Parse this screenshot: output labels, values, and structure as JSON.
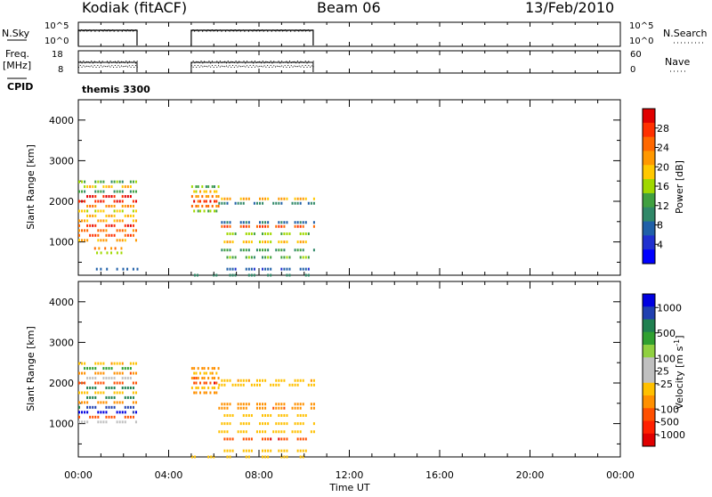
{
  "header": {
    "station": "Kodiak (fitACF)",
    "beam": "Beam 06",
    "date": "13/Feb/2010"
  },
  "top_panels": {
    "nsky_label": "N.Sky",
    "nsky_ticks": [
      "10^5",
      "10^0"
    ],
    "nsearch_label": "N.Search",
    "nsearch_ticks": [
      "10^5",
      "10^0"
    ],
    "freq_label": "Freq.",
    "freq_unit": "[MHz]",
    "freq_ticks": [
      "18",
      "8"
    ],
    "nave_label": "Nave",
    "nave_ticks": [
      "60",
      "0"
    ],
    "cpid_label": "CPID",
    "cpid_value": "themis 3300"
  },
  "axes": {
    "ylabel": "Slant Range [km]",
    "xlabel": "Time UT",
    "x_ticks": [
      "00:00",
      "04:00",
      "08:00",
      "12:00",
      "16:00",
      "20:00",
      "00:00"
    ],
    "y_ticks": [
      "4000",
      "3000",
      "2000",
      "1000"
    ]
  },
  "power_scale": {
    "label": "Power [dB]",
    "ticks": [
      "28",
      "24",
      "20",
      "16",
      "12",
      "8",
      "4"
    ],
    "colors": [
      "#e00000",
      "#ff3000",
      "#ff6800",
      "#ff9800",
      "#ffc800",
      "#a0d800",
      "#40a040",
      "#308868",
      "#2060a8",
      "#2030d0",
      "#0000ff"
    ]
  },
  "velocity_scale": {
    "label": "Velocity [m s",
    "label_sup": "-1",
    "label_end": "]",
    "ticks": [
      "1000",
      "500",
      "100",
      "25",
      "-25",
      "-100",
      "-500",
      "-1000"
    ],
    "colors": [
      "#0000e0",
      "#2040b0",
      "#208050",
      "#30a030",
      "#90d040",
      "#c0c0c0",
      "#c0c0c0",
      "#ffc000",
      "#ff9000",
      "#ff5000",
      "#ff2000",
      "#e00000"
    ]
  },
  "chart_data": [
    {
      "type": "line",
      "title": "N.Sky / N.Search",
      "x_range_hours": [
        0,
        24
      ],
      "operating_intervals_hours": [
        [
          0,
          2.6
        ],
        [
          5.0,
          10.4
        ]
      ],
      "nsky_level": "10^5",
      "nsearch_line": "dotted"
    },
    {
      "type": "scatter",
      "title": "Freq. / Nave",
      "operating_intervals_hours": [
        [
          0,
          2.6
        ],
        [
          5.0,
          10.4
        ]
      ],
      "freq_range_mhz": [
        8,
        18
      ],
      "nave_range": [
        0,
        60
      ]
    },
    {
      "type": "scatter",
      "title": "Power [dB]",
      "xlabel": "Time UT",
      "ylabel": "Slant Range [km]",
      "xlim_hours": [
        0,
        24
      ],
      "ylim_km": [
        180,
        4500
      ],
      "colorbar": [
        0,
        32
      ],
      "samples": [
        {
          "t0": 0.0,
          "t1": 2.6,
          "ranges": [
            2480,
            2360,
            2240,
            2120,
            2000,
            1880,
            1760,
            1640,
            1520,
            1400,
            1280,
            1160,
            1040
          ],
          "values": [
            12,
            18,
            10,
            30,
            28,
            22,
            16,
            18,
            20,
            28,
            24,
            26,
            20
          ]
        },
        {
          "t0": 0.7,
          "t1": 2.0,
          "ranges": [
            840,
            730
          ],
          "values": [
            22,
            14
          ]
        },
        {
          "t0": 5.0,
          "t1": 6.2,
          "ranges": [
            2360,
            2240,
            2120,
            2000,
            1880,
            1760
          ],
          "values": [
            12,
            18,
            22,
            28,
            24,
            14
          ]
        },
        {
          "t0": 6.2,
          "t1": 10.4,
          "ranges": [
            2060,
            1950,
            1480,
            1380,
            1200,
            1000,
            800,
            620,
            330
          ],
          "values": [
            20,
            8,
            6,
            26,
            14,
            18,
            10,
            12,
            4
          ]
        },
        {
          "t0": 0.6,
          "t1": 2.6,
          "ranges": [
            330
          ],
          "values": [
            4
          ]
        },
        {
          "t0": 5.0,
          "t1": 10.4,
          "ranges": [
            180
          ],
          "values": [
            8
          ]
        }
      ]
    },
    {
      "type": "scatter",
      "title": "Velocity [m s-1]",
      "xlabel": "Time UT",
      "ylabel": "Slant Range [km]",
      "xlim_hours": [
        0,
        24
      ],
      "ylim_km": [
        180,
        4500
      ],
      "colorbar": [
        -1500,
        1500
      ],
      "samples": [
        {
          "t0": 0.0,
          "t1": 2.6,
          "ranges": [
            2480,
            2360,
            2240,
            2120,
            2000,
            1880,
            1760,
            1640,
            1520,
            1400,
            1280,
            1160,
            1040
          ],
          "values": [
            -100,
            50,
            -500,
            20,
            -1000,
            300,
            -50,
            100,
            -300,
            500,
            1000,
            -600,
            -20
          ]
        },
        {
          "t0": 5.0,
          "t1": 6.2,
          "ranges": [
            2360,
            2240,
            2120,
            2000,
            1880,
            1760
          ],
          "values": [
            -300,
            -100,
            -500,
            -1000,
            -60,
            -200
          ]
        },
        {
          "t0": 6.2,
          "t1": 10.4,
          "ranges": [
            2060,
            1950,
            1480,
            1380,
            1200,
            1000,
            800,
            620,
            330
          ],
          "values": [
            -100,
            -40,
            -200,
            -500,
            -80,
            -60,
            -30,
            -1000,
            -50
          ]
        },
        {
          "t0": 5.0,
          "t1": 10.4,
          "ranges": [
            180
          ],
          "values": [
            -50
          ]
        }
      ]
    }
  ]
}
